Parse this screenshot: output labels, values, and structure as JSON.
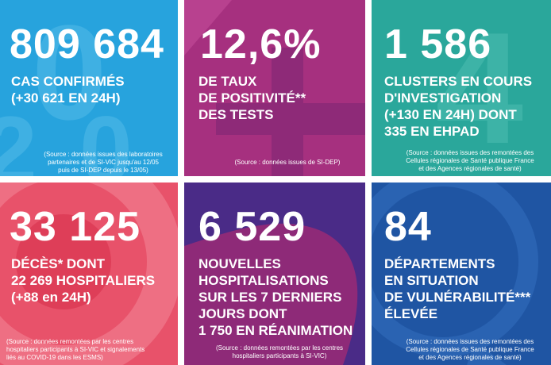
{
  "tiles": [
    {
      "number": "809 684",
      "lines": [
        "CAS CONFIRMÉS",
        "(+30 621 EN 24H)"
      ],
      "source": [
        "(Source : données issues des laboratoires",
        "partenaires et de SI-VIC jusqu'au 12/05",
        "puis de SI-DEP depuis le 13/05)"
      ],
      "color": "#27a3dd"
    },
    {
      "number": "12,6%",
      "lines": [
        "DE TAUX",
        "DE POSITIVITÉ**",
        "DES TESTS"
      ],
      "source": [
        "(Source : données issues de SI-DEP)"
      ],
      "color": "#a6307f"
    },
    {
      "number": "1 586",
      "lines": [
        "CLUSTERS EN COURS",
        "D'INVESTIGATION",
        "(+130 EN 24H) DONT",
        "335 EN EHPAD"
      ],
      "source": [
        "(Source : données issues des remontées des",
        "Cellules régionales de Santé publique France",
        "et des Agences régionales de santé)"
      ],
      "color": "#2aa79b"
    },
    {
      "number": "33 125",
      "lines": [
        "DÉCÈS* DONT",
        "22 269 HOSPITALIERS",
        "(+88 en 24H)"
      ],
      "source": [
        "(Source : données remontées par les centres",
        "hospitaliers participants à SI-VIC et signalements",
        "liés au COVID-19 dans les ESMS)"
      ],
      "color": "#e8526a"
    },
    {
      "number": "6 529",
      "lines": [
        "NOUVELLES",
        "HOSPITALISATIONS",
        "SUR LES 7 DERNIERS",
        "JOURS DONT",
        "1 750 EN RÉANIMATION"
      ],
      "source": [
        "(Source : données remontées par les centres",
        "hospitaliers participants à SI-VIC)"
      ],
      "color": "#4a2b87"
    },
    {
      "number": "84",
      "lines": [
        "DÉPARTEMENTS",
        "EN SITUATION",
        "DE VULNÉRABILITÉ***",
        "ÉLEVÉE"
      ],
      "source": [
        "(Source : données issues des remontées des",
        "Cellules régionales de Santé publique France",
        "et des Agences régionales de santé)"
      ],
      "color": "#1f55a3"
    }
  ]
}
